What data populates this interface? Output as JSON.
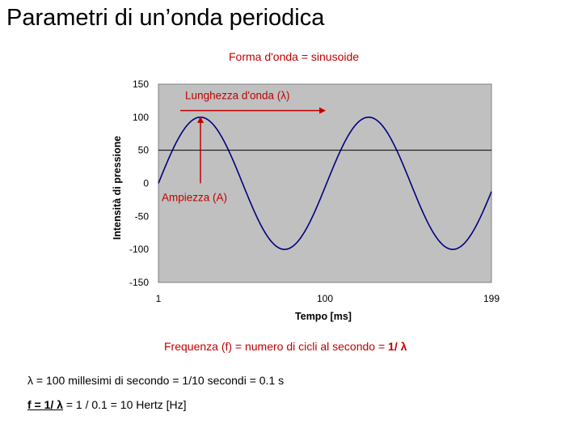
{
  "slide": {
    "title": "Parametri di un’onda periodica"
  },
  "chart_data": {
    "type": "line",
    "title": "Forma d'onda = sinusoide",
    "xlabel": "Tempo [ms]",
    "ylabel": "Intensità di pressione",
    "xlim": [
      1,
      199
    ],
    "ylim": [
      -150,
      150
    ],
    "xticks": [
      "1",
      "100",
      "199"
    ],
    "yticks": [
      "150",
      "100",
      "50",
      "0",
      "-50",
      "-100",
      "-150"
    ],
    "series": [
      {
        "function": "sine",
        "amplitude": 100,
        "period": 100,
        "offset": 0,
        "color": "#000080"
      }
    ],
    "reference_line": {
      "y": 50,
      "color": "#000000"
    },
    "plot_background": "#c0c0c0",
    "annotations": {
      "wavelength": {
        "label": "Lunghezza d'onda (λ)",
        "from_x": 14,
        "to_x": 100,
        "y": 110,
        "color": "#c00000"
      },
      "amplitude": {
        "label": "Ampiezza (A)",
        "x": 26,
        "from_y": 0,
        "to_y": 100,
        "color": "#c00000"
      }
    }
  },
  "notes": {
    "freq_text": "Frequenza (f) = numero di cicli al secondo = ",
    "freq_bold": "1/ λ",
    "lambda_text": "λ = 100 millesimi di secondo = 1/10 secondi = 0.1 s",
    "f_underlined": "f = 1/ λ",
    "f_rest": " = 1 / 0.1 = 10 Hertz [Hz]"
  }
}
